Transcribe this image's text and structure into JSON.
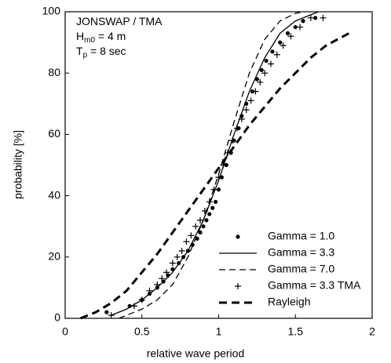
{
  "chart_data": {
    "type": "scatter",
    "xlabel": "relative wave period",
    "ylabel": "probability [%]",
    "xlim": [
      0,
      2
    ],
    "xticks": [
      0,
      0.5,
      1,
      1.5,
      2
    ],
    "ylim": [
      0,
      100
    ],
    "yticks": [
      0,
      20,
      40,
      60,
      80,
      100
    ],
    "grid": false,
    "legend": "lower right",
    "annotations": [
      {
        "text": "JONSWAP / TMA"
      },
      {
        "text": "H",
        "sub": "m0",
        "tail": " = 4 m"
      },
      {
        "text": "T",
        "sub": "p",
        "tail": " = 8 sec"
      }
    ],
    "series": [
      {
        "name": "Gamma = 1.0",
        "color": "#000000",
        "marker": "dot",
        "line": "none",
        "x": [
          0.27,
          0.42,
          0.5,
          0.55,
          0.6,
          0.64,
          0.67,
          0.7,
          0.74,
          0.77,
          0.8,
          0.83,
          0.86,
          0.88,
          0.9,
          0.92,
          0.94,
          0.96,
          0.98,
          1.0,
          1.02,
          1.05,
          1.08,
          1.1,
          1.13,
          1.15,
          1.18,
          1.22,
          1.25,
          1.28,
          1.31,
          1.35,
          1.4,
          1.45,
          1.5,
          1.55,
          1.63
        ],
        "values": [
          2,
          4,
          6,
          8,
          10,
          12,
          14,
          16,
          18,
          20,
          22,
          24,
          26,
          28,
          30,
          32,
          34,
          36,
          38,
          42,
          46,
          50,
          54,
          58,
          62,
          66,
          70,
          74,
          78,
          81,
          84,
          87,
          90,
          93,
          95,
          97,
          98
        ]
      },
      {
        "name": "Gamma = 3.3",
        "color": "#000000",
        "marker": "none",
        "line": "solid",
        "x": [
          0.3,
          0.4,
          0.5,
          0.6,
          0.7,
          0.8,
          0.9,
          1.0,
          1.1,
          1.2,
          1.3,
          1.4,
          1.5,
          1.6,
          1.65
        ],
        "values": [
          1,
          3,
          6,
          10,
          15,
          22,
          32,
          45,
          60,
          74,
          85,
          93,
          97,
          99,
          100
        ]
      },
      {
        "name": "Gamma = 7.0",
        "color": "#000000",
        "marker": "none",
        "line": "dashed",
        "x": [
          0.35,
          0.5,
          0.6,
          0.7,
          0.8,
          0.9,
          1.0,
          1.1,
          1.2,
          1.3,
          1.4,
          1.5,
          1.55
        ],
        "values": [
          0,
          3,
          6,
          11,
          20,
          32,
          47,
          64,
          80,
          91,
          97,
          99.5,
          100
        ]
      },
      {
        "name": "Gamma = 3.3 TMA",
        "color": "#000000",
        "marker": "plus",
        "line": "none",
        "x": [
          0.3,
          0.45,
          0.5,
          0.55,
          0.6,
          0.63,
          0.66,
          0.7,
          0.73,
          0.76,
          0.79,
          0.82,
          0.85,
          0.88,
          0.91,
          0.94,
          0.97,
          1.0,
          1.03,
          1.06,
          1.09,
          1.12,
          1.15,
          1.18,
          1.21,
          1.24,
          1.27,
          1.3,
          1.34,
          1.38,
          1.42,
          1.47,
          1.53,
          1.6,
          1.68
        ],
        "values": [
          1,
          4,
          6,
          9,
          11,
          13,
          15,
          18,
          20,
          22,
          25,
          27,
          30,
          32,
          35,
          38,
          42,
          46,
          50,
          54,
          58,
          62,
          65,
          68,
          71,
          74,
          77,
          80,
          83,
          86,
          89,
          92,
          95,
          98,
          98
        ]
      },
      {
        "name": "Rayleigh",
        "color": "#000000",
        "marker": "none",
        "line": "thick-dashed",
        "x": [
          0.1,
          0.2,
          0.3,
          0.4,
          0.5,
          0.6,
          0.7,
          0.8,
          0.9,
          1.0,
          1.1,
          1.2,
          1.3,
          1.4,
          1.5,
          1.6,
          1.7,
          1.85
        ],
        "values": [
          0,
          2,
          5,
          9,
          15,
          21,
          28,
          35,
          42,
          49,
          56,
          63,
          69,
          75,
          80,
          85,
          89,
          93
        ]
      }
    ]
  }
}
